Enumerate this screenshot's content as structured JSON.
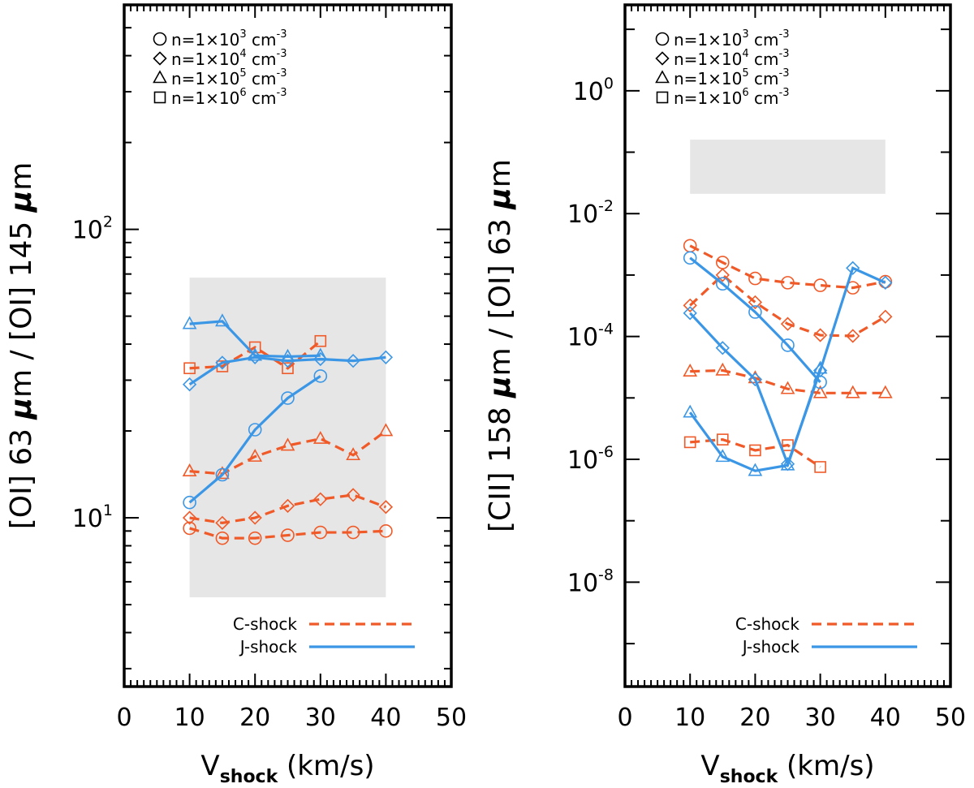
{
  "colors": {
    "c_shock": "#f05a28",
    "j_shock": "#3b97e6",
    "range_box": "#e6e6e6",
    "axis": "#000000"
  },
  "density_legend": [
    {
      "marker": "circle",
      "label": "n=1×10",
      "exp": "3",
      "unit": " cm",
      "unit_exp": "-3"
    },
    {
      "marker": "diamond",
      "label": "n=1×10",
      "exp": "4",
      "unit": " cm",
      "unit_exp": "-3"
    },
    {
      "marker": "triangle",
      "label": "n=1×10",
      "exp": "5",
      "unit": " cm",
      "unit_exp": "-3"
    },
    {
      "marker": "square",
      "label": "n=1×10",
      "exp": "6",
      "unit": " cm",
      "unit_exp": "-3"
    }
  ],
  "shock_legend": {
    "c_label": "C-shock",
    "j_label": "J-shock"
  },
  "chart_data": [
    {
      "type": "line",
      "title": "",
      "xlabel_main": "V",
      "xlabel_sub": "shock",
      "xlabel_tail": " (km/s)",
      "ylabel_parts": [
        "[OI] 63 ",
        "μ",
        "m / [OI] 145 ",
        "μ",
        "m"
      ],
      "xlim": [
        0,
        50
      ],
      "ylim": [
        2.6,
        600
      ],
      "yscale": "log",
      "x_ticks": [
        "0",
        "10",
        "20",
        "30",
        "40",
        "50"
      ],
      "y_ticks": [
        {
          "base": "10",
          "exp": "1",
          "value": 10
        },
        {
          "base": "10",
          "exp": "2",
          "value": 100
        }
      ],
      "observed_range": {
        "x": [
          10,
          40
        ],
        "y": [
          5.3,
          68
        ]
      },
      "series": [
        {
          "shock": "C",
          "density": "1e3",
          "marker": "circle",
          "x": [
            10,
            15,
            20,
            25,
            30,
            35,
            40
          ],
          "y": [
            9.2,
            8.5,
            8.5,
            8.7,
            8.9,
            8.9,
            9.0
          ]
        },
        {
          "shock": "C",
          "density": "1e4",
          "marker": "diamond",
          "x": [
            10,
            15,
            20,
            25,
            30,
            35,
            40
          ],
          "y": [
            10.0,
            9.6,
            10.0,
            11.0,
            11.6,
            12.0,
            10.9
          ]
        },
        {
          "shock": "C",
          "density": "1e5",
          "marker": "triangle",
          "x": [
            10,
            15,
            20,
            25,
            30,
            35,
            40
          ],
          "y": [
            14.5,
            14.2,
            16.3,
            17.8,
            18.8,
            16.5,
            20.0
          ]
        },
        {
          "shock": "C",
          "density": "1e6",
          "marker": "square",
          "x": [
            10,
            15,
            20,
            25,
            30
          ],
          "y": [
            33,
            33.5,
            39,
            33,
            41
          ]
        },
        {
          "shock": "J",
          "density": "1e3",
          "marker": "circle",
          "x": [
            10,
            15,
            20,
            25,
            30
          ],
          "y": [
            11.3,
            14.1,
            20.2,
            26.0,
            31.0
          ]
        },
        {
          "shock": "J",
          "density": "1e4",
          "marker": "diamond",
          "x": [
            10,
            15,
            20,
            25,
            30,
            35,
            40
          ],
          "y": [
            29,
            34.5,
            36,
            35,
            35.5,
            35,
            36
          ]
        },
        {
          "shock": "J",
          "density": "1e5",
          "marker": "triangle",
          "x": [
            10,
            15,
            20,
            25,
            30
          ],
          "y": [
            47,
            48,
            36.5,
            36.2,
            36.5
          ]
        }
      ]
    },
    {
      "type": "line",
      "title": "",
      "xlabel_main": "V",
      "xlabel_sub": "shock",
      "xlabel_tail": " (km/s)",
      "ylabel_parts": [
        "[CII] 158 ",
        "μ",
        "m / [OI] 63 ",
        "μ",
        "m"
      ],
      "xlim": [
        0,
        50
      ],
      "ylim": [
        2e-10,
        25
      ],
      "yscale": "log",
      "x_ticks": [
        "0",
        "10",
        "20",
        "30",
        "40",
        "50"
      ],
      "y_ticks": [
        {
          "base": "10",
          "exp": "-8",
          "value": 1e-08
        },
        {
          "base": "10",
          "exp": "-6",
          "value": 1e-06
        },
        {
          "base": "10",
          "exp": "-4",
          "value": 0.0001
        },
        {
          "base": "10",
          "exp": "-2",
          "value": 0.01
        },
        {
          "base": "10",
          "exp": "0",
          "value": 1
        }
      ],
      "observed_range": {
        "x": [
          10,
          40
        ],
        "y": [
          0.021,
          0.16
        ]
      },
      "series": [
        {
          "shock": "C",
          "density": "1e3",
          "marker": "circle",
          "x": [
            10,
            15,
            20,
            25,
            30,
            35,
            40
          ],
          "y": [
            0.003,
            0.0016,
            0.00088,
            0.00075,
            0.00068,
            0.00062,
            0.00078
          ]
        },
        {
          "shock": "C",
          "density": "1e4",
          "marker": "diamond",
          "x": [
            10,
            15,
            20,
            25,
            30,
            35,
            40
          ],
          "y": [
            0.00032,
            0.001,
            0.00036,
            0.00016,
            0.000105,
            0.000102,
            0.00021
          ]
        },
        {
          "shock": "C",
          "density": "1e5",
          "marker": "triangle",
          "x": [
            10,
            15,
            20,
            25,
            30,
            35,
            40
          ],
          "y": [
            2.7e-05,
            2.8e-05,
            2.1e-05,
            1.4e-05,
            1.2e-05,
            1.2e-05,
            1.2e-05
          ]
        },
        {
          "shock": "C",
          "density": "1e6",
          "marker": "square",
          "x": [
            10,
            15,
            20,
            25,
            30
          ],
          "y": [
            1.9e-06,
            2.1e-06,
            1.4e-06,
            1.7e-06,
            7.5e-07
          ]
        },
        {
          "shock": "J",
          "density": "1e3",
          "marker": "circle",
          "x": [
            10,
            15,
            20,
            25,
            30
          ],
          "y": [
            0.0019,
            0.00072,
            0.00025,
            7.2e-05,
            1.8e-05
          ]
        },
        {
          "shock": "J",
          "density": "1e4",
          "marker": "diamond",
          "x": [
            10,
            15,
            20,
            25,
            30,
            35,
            40
          ],
          "y": [
            0.00024,
            6.5e-05,
            2e-05,
            8.4e-07,
            2.8e-05,
            0.0013,
            0.00075
          ]
        },
        {
          "shock": "J",
          "density": "1e5",
          "marker": "triangle",
          "x": [
            10,
            15,
            20,
            25,
            30
          ],
          "y": [
            5.8e-06,
            1.1e-06,
            6.5e-07,
            8e-07,
            3e-05
          ]
        }
      ]
    }
  ]
}
